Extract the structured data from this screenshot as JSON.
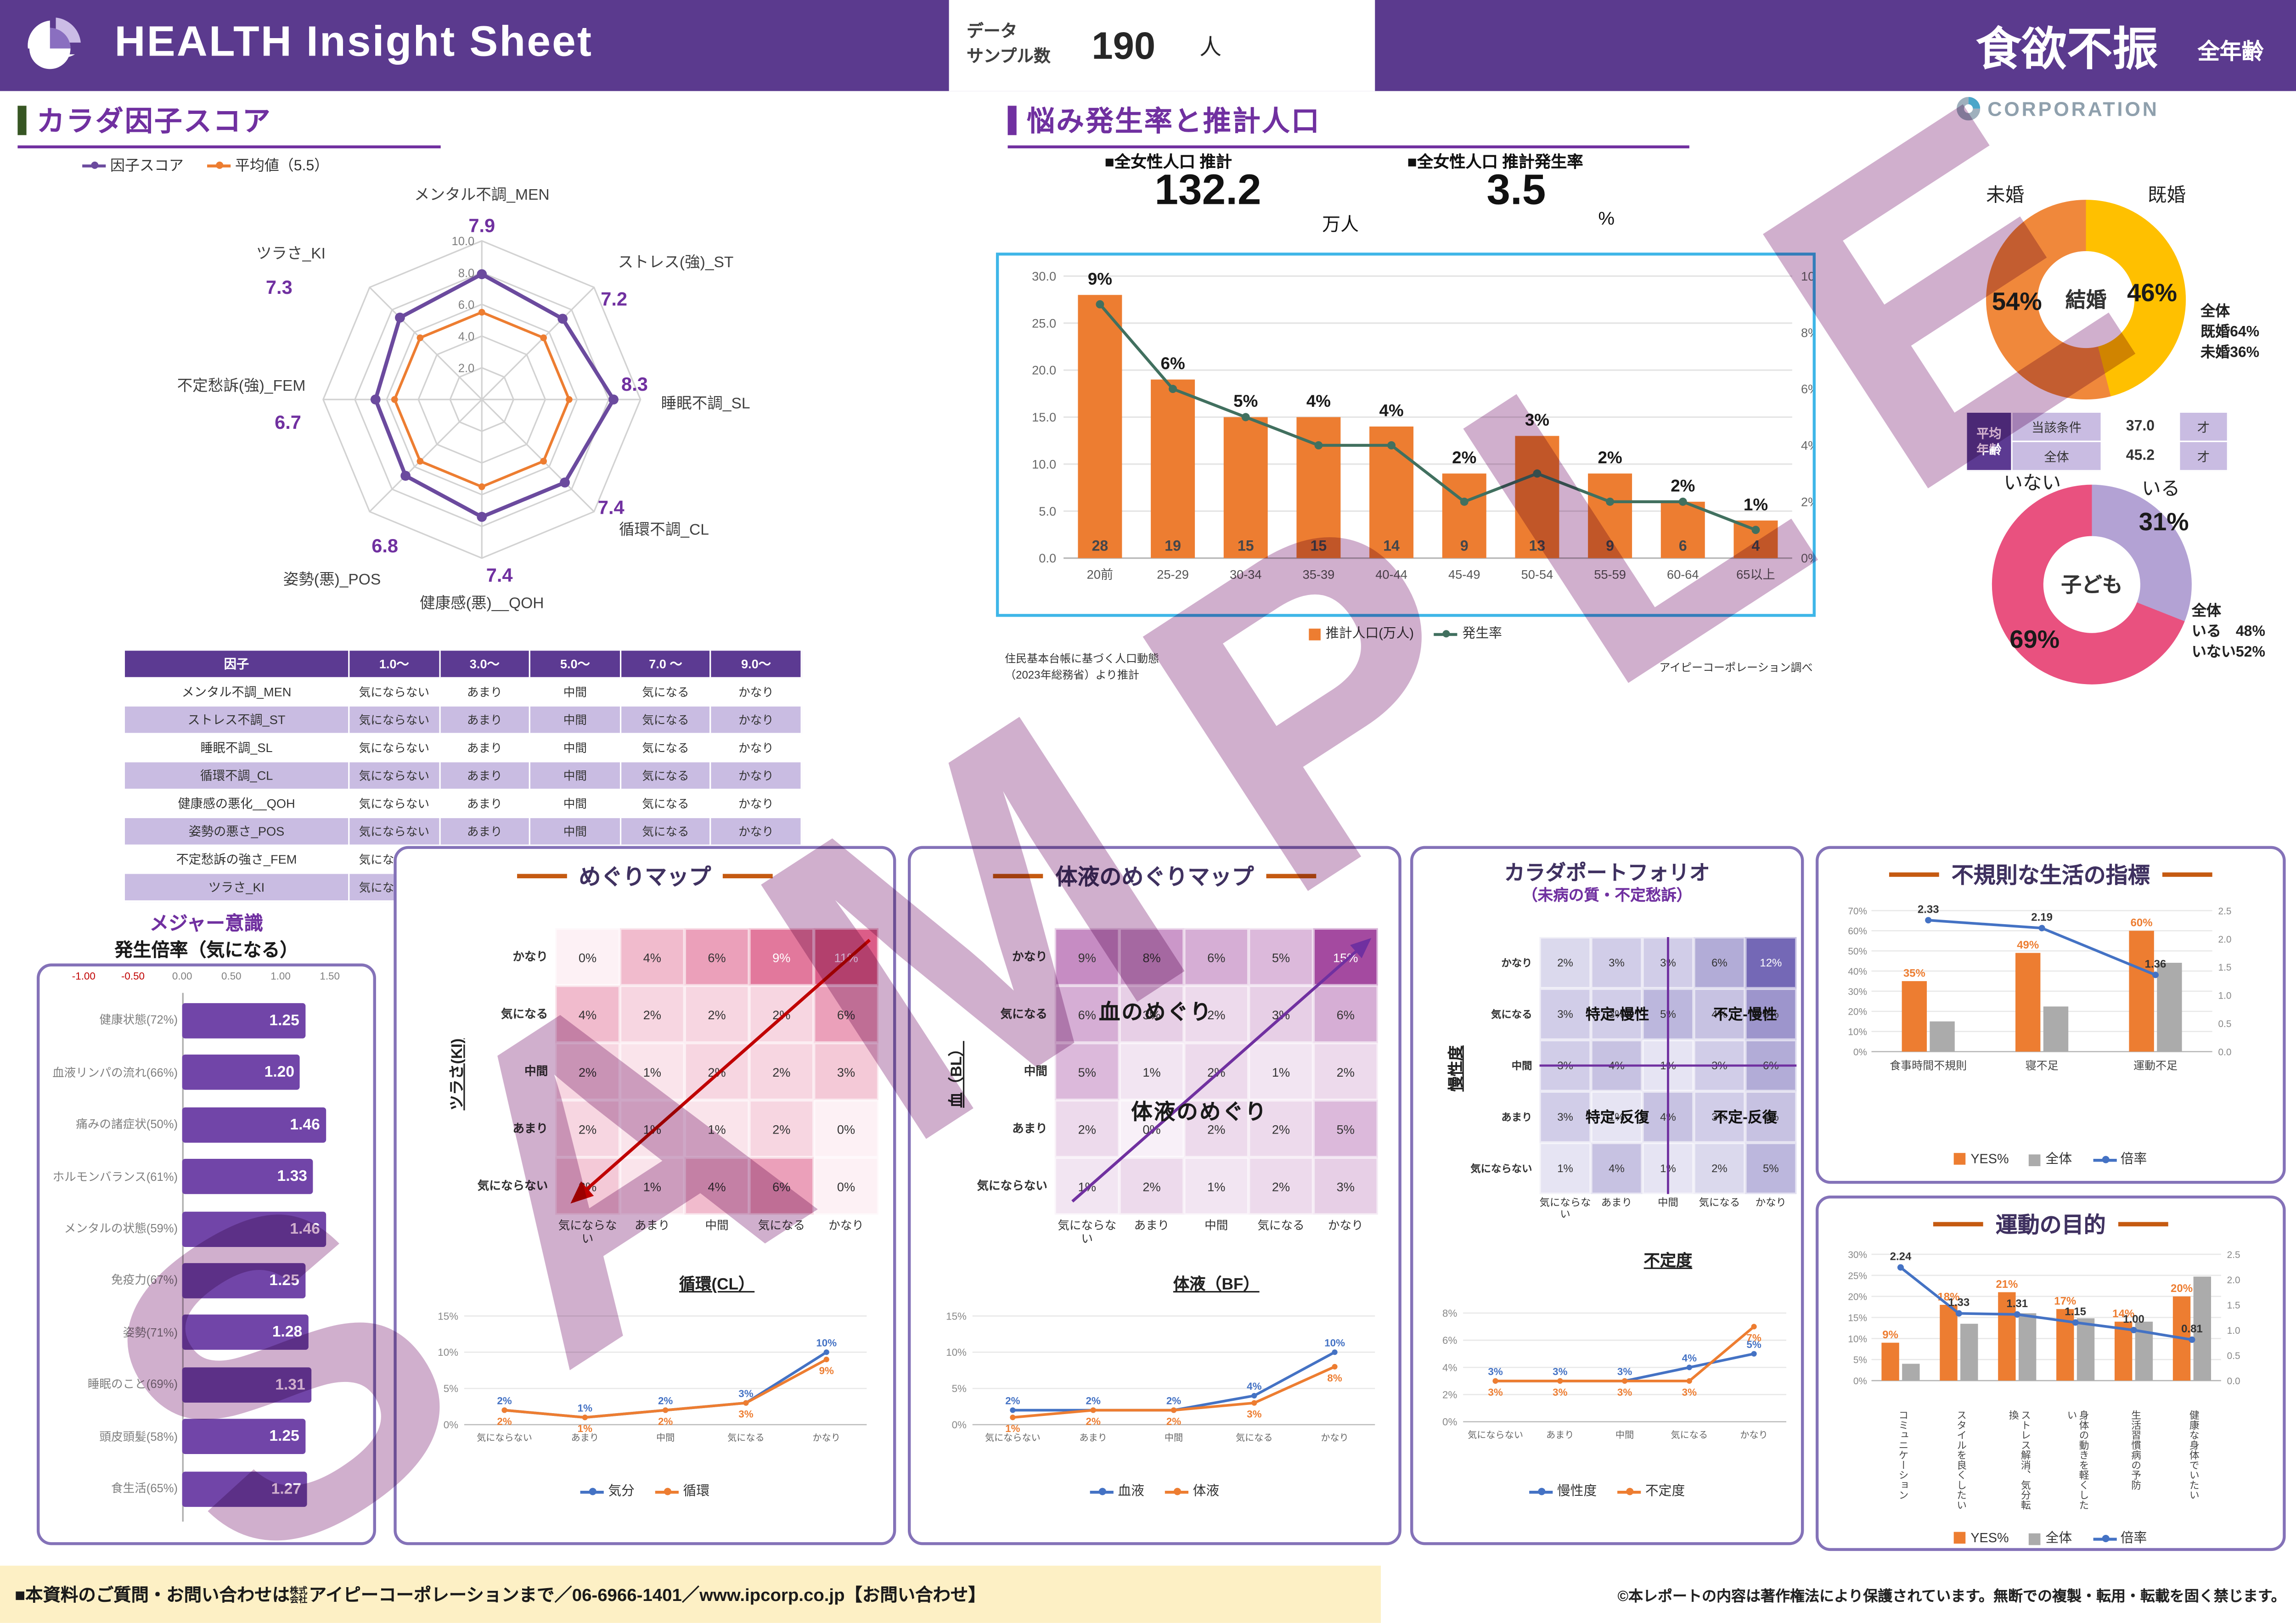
{
  "header": {
    "title": "HEALTH Insight Sheet",
    "sample_label_1": "データ",
    "sample_label_2": "サンプル数",
    "sample_value": "190",
    "sample_unit": "人",
    "topic": "食欲不振",
    "scope": "全年齢"
  },
  "logo": {
    "text": "CORPORATION"
  },
  "factor": {
    "section_title": "カラダ因子スコア",
    "legend_score": "因子スコア",
    "legend_avg": "平均値（5.5）",
    "ring_labels": [
      "2.0",
      "4.0",
      "6.0",
      "8.0",
      "10.0"
    ],
    "avg": 5.5,
    "axes": [
      {
        "name": "メンタル不調_MEN",
        "value": 7.9
      },
      {
        "name": "ストレス(強)_ST",
        "value": 7.2
      },
      {
        "name": "睡眠不調_SL",
        "value": 8.3
      },
      {
        "name": "循環不調_CL",
        "value": 7.4
      },
      {
        "name": "健康感(悪)__QOH",
        "value": 7.4
      },
      {
        "name": "姿勢(悪)_POS",
        "value": 6.8
      },
      {
        "name": "不定愁訴(強)_FEM",
        "value": 6.7
      },
      {
        "name": "ツラさ_KI",
        "value": 7.3
      }
    ],
    "table": {
      "headers": [
        "因子",
        "1.0〜",
        "3.0〜",
        "5.0〜",
        "7.0 〜",
        "9.0〜"
      ],
      "scale_labels": [
        "気にならない",
        "あまり",
        "中間",
        "気になる",
        "かなり"
      ],
      "rows": [
        "メンタル不調_MEN",
        "ストレス不調_ST",
        "睡眠不調_SL",
        "循環不調_CL",
        "健康感の悪化__QOH",
        "姿勢の悪さ_POS",
        "不定愁訴の強さ_FEM",
        "ツラさ_KI"
      ]
    }
  },
  "population": {
    "section_title": "悩み発生率と推計人口",
    "stat1_label": "■全女性人口 推計",
    "stat1_value": "132.2",
    "stat1_unit": "万人",
    "stat2_label": "■全女性人口 推計発生率",
    "stat2_value": "3.5",
    "stat2_unit": "%",
    "chart_data": {
      "type": "bar+line",
      "categories": [
        "20前",
        "25-29",
        "30-34",
        "35-39",
        "40-44",
        "45-49",
        "50-54",
        "55-59",
        "60-64",
        "65以上"
      ],
      "series": [
        {
          "name": "推計人口(万人)",
          "type": "bar",
          "values": [
            28,
            19,
            15,
            15,
            14,
            9,
            13,
            9,
            6,
            4
          ]
        },
        {
          "name": "発生率",
          "type": "line",
          "values": [
            9,
            6,
            5,
            4,
            4,
            2,
            3,
            2,
            2,
            1
          ]
        }
      ],
      "left_axis": {
        "max": 30,
        "ticks": [
          "0.0",
          "5.0",
          "10.0",
          "15.0",
          "20.0",
          "25.0",
          "30.0"
        ]
      },
      "right_axis": {
        "max": 10,
        "ticks": [
          "0%",
          "2%",
          "4%",
          "6%",
          "8%",
          "10%"
        ]
      }
    },
    "source_left_1": "住民基本台帳に基づく人口動態",
    "source_left_2": "（2023年総務省）より推計",
    "source_right": "アイピーコーポレーション調べ"
  },
  "marriage": {
    "center": "結婚",
    "chart_data": {
      "type": "pie",
      "segments": [
        {
          "label": "既婚",
          "value": 46,
          "color": "#FFC000"
        },
        {
          "label": "未婚",
          "value": 54,
          "color": "#F0883B"
        }
      ]
    },
    "label_left": "未婚",
    "pct_left": "54%",
    "label_right": "既婚",
    "pct_right": "46%",
    "note_1": "全体",
    "note_2": "既婚64%",
    "note_3": "未婚36%"
  },
  "age_table": {
    "header_1": "平均",
    "header_2": "年齢",
    "rows": [
      {
        "label": "当該条件",
        "value": "37.0",
        "unit": "才"
      },
      {
        "label": "全体",
        "value": "45.2",
        "unit": "才"
      }
    ]
  },
  "children": {
    "center": "子ども",
    "chart_data": {
      "type": "pie",
      "segments": [
        {
          "label": "いる",
          "value": 31,
          "color": "#B3A2D4"
        },
        {
          "label": "いない",
          "value": 69,
          "color": "#E9517F"
        }
      ]
    },
    "label_left": "いない",
    "pct_left": "69%",
    "label_right": "いる",
    "pct_right": "31%",
    "note_1": "全体",
    "note_2": "いる　48%",
    "note_3": "いない52%"
  },
  "measure": {
    "title_1": "メジャー意識",
    "title_2": "発生倍率（気になる）",
    "axis_ticks": [
      "-1.00",
      "-0.50",
      "0.00",
      "0.50",
      "1.00",
      "1.50"
    ],
    "chart_data": {
      "type": "bar",
      "xlim": [
        -1.0,
        1.5
      ],
      "items": [
        {
          "label": "健康状態(72%)",
          "value": 1.25
        },
        {
          "label": "血液リンパの流れ(66%)",
          "value": 1.2
        },
        {
          "label": "痛みの諸症状(50%)",
          "value": 1.46
        },
        {
          "label": "ホルモンバランス(61%)",
          "value": 1.33
        },
        {
          "label": "メンタルの状態(59%)",
          "value": 1.46
        },
        {
          "label": "免疫力(67%)",
          "value": 1.25
        },
        {
          "label": "姿勢(71%)",
          "value": 1.28
        },
        {
          "label": "睡眠のこと(69%)",
          "value": 1.31
        },
        {
          "label": "頭皮頭髪(58%)",
          "value": 1.25
        },
        {
          "label": "食生活(65%)",
          "value": 1.27
        }
      ]
    }
  },
  "meguri": {
    "title": "めぐりマップ",
    "y_axis": "ツラさ(KI)",
    "x_axis": "循環(CL）",
    "chart_data": {
      "type": "heatmap",
      "row_labels": [
        "かなり",
        "気になる",
        "中間",
        "あまり",
        "気にならない"
      ],
      "col_labels": [
        "気にならない",
        "あまり",
        "中間",
        "気になる",
        "かなり"
      ],
      "values": [
        [
          0,
          4,
          6,
          9,
          11
        ],
        [
          4,
          2,
          2,
          2,
          6
        ],
        [
          2,
          1,
          2,
          2,
          3
        ],
        [
          2,
          1,
          1,
          2,
          0
        ],
        [
          3,
          1,
          4,
          6,
          0
        ]
      ]
    },
    "line_chart": {
      "type": "line",
      "x": [
        "気にならない",
        "あまり",
        "中間",
        "気になる",
        "かなり"
      ],
      "ticks": [
        "0%",
        "5%",
        "10%",
        "15%"
      ],
      "max": 15,
      "series": [
        {
          "name": "気分",
          "color": "#4472C4",
          "values": [
            2,
            1,
            2,
            3,
            10
          ]
        },
        {
          "name": "循環",
          "color": "#ED7D31",
          "values": [
            2,
            1,
            2,
            3,
            9
          ]
        }
      ]
    }
  },
  "taieki": {
    "title": "体液のめぐりマップ",
    "y_axis": "血（BL）",
    "x_axis": "体液（BF）",
    "overlay_1": "血のめぐり",
    "overlay_2": "体液のめぐり",
    "chart_data": {
      "type": "heatmap",
      "row_labels": [
        "かなり",
        "気になる",
        "中間",
        "あまり",
        "気にならない"
      ],
      "col_labels": [
        "気にならない",
        "あまり",
        "中間",
        "気になる",
        "かなり"
      ],
      "values": [
        [
          9,
          8,
          6,
          5,
          15
        ],
        [
          6,
          3,
          2,
          3,
          6
        ],
        [
          5,
          1,
          2,
          1,
          2
        ],
        [
          2,
          0,
          2,
          2,
          5
        ],
        [
          1,
          2,
          1,
          2,
          3
        ]
      ]
    },
    "line_chart": {
      "type": "line",
      "x": [
        "気にならない",
        "あまり",
        "中間",
        "気になる",
        "かなり"
      ],
      "ticks": [
        "0%",
        "5%",
        "10%",
        "15%"
      ],
      "max": 15,
      "series": [
        {
          "name": "血液",
          "color": "#4472C4",
          "values": [
            2,
            2,
            2,
            4,
            10
          ]
        },
        {
          "name": "体液",
          "color": "#ED7D31",
          "values": [
            1,
            2,
            2,
            3,
            8
          ]
        }
      ]
    }
  },
  "portfolio": {
    "title": "カラダポートフォリオ",
    "subtitle": "（未病の質・不定愁訴）",
    "y_axis": "慢性度",
    "x_axis": "不定度",
    "quadrants": [
      "特定-慢性",
      "不定-慢性",
      "特定-反復",
      "不定-反復"
    ],
    "chart_data": {
      "type": "heatmap",
      "row_labels": [
        "かなり",
        "気になる",
        "中間",
        "あまり",
        "気にならない"
      ],
      "col_labels": [
        "気にならない",
        "あまり",
        "中間",
        "気になる",
        "かなり"
      ],
      "values": [
        [
          2,
          3,
          3,
          6,
          12
        ],
        [
          3,
          3,
          5,
          4,
          8
        ],
        [
          3,
          4,
          1,
          3,
          6
        ],
        [
          3,
          1,
          4,
          3,
          4
        ],
        [
          1,
          4,
          1,
          2,
          5
        ]
      ]
    },
    "line_chart": {
      "type": "line",
      "x": [
        "気にならない",
        "あまり",
        "中間",
        "気になる",
        "かなり"
      ],
      "ticks": [
        "0%",
        "2%",
        "4%",
        "6%",
        "8%"
      ],
      "max": 8,
      "series": [
        {
          "name": "慢性度",
          "color": "#4472C4",
          "values": [
            3,
            3,
            3,
            4,
            5
          ]
        },
        {
          "name": "不定度",
          "color": "#ED7D31",
          "values": [
            3,
            3,
            3,
            3,
            7
          ]
        }
      ]
    }
  },
  "irregular": {
    "title": "不規則な生活の指標",
    "legend": [
      "YES%",
      "全体",
      "倍率"
    ],
    "chart_data": {
      "type": "combo",
      "categories": [
        "食事時間不規則",
        "寝不足",
        "運動不足"
      ],
      "yes_pct": [
        35,
        49,
        60
      ],
      "all_pct": [
        15,
        22.4,
        44.1
      ],
      "ratio": [
        2.33,
        2.19,
        1.36
      ],
      "left_max": 70,
      "left_ticks": [
        "0%",
        "10%",
        "20%",
        "30%",
        "40%",
        "50%",
        "60%",
        "70%"
      ],
      "right_max": 2.5,
      "right_ticks": [
        "0.0",
        "0.5",
        "1.0",
        "1.5",
        "2.0",
        "2.5"
      ]
    }
  },
  "exercise": {
    "title": "運動の目的",
    "legend": [
      "YES%",
      "全体",
      "倍率"
    ],
    "chart_data": {
      "type": "combo",
      "categories": [
        "コミュニケーション",
        "スタイルを良くしたい",
        "ストレス解消、気分転換",
        "身体の動きを軽くしたい",
        "生活習慣病の予防",
        "健康な身体でいたい"
      ],
      "yes_pct": [
        9,
        18,
        21,
        17,
        14,
        20
      ],
      "all_pct": [
        4,
        13.5,
        16,
        14.8,
        14,
        24.7
      ],
      "ratio": [
        2.24,
        1.33,
        1.31,
        1.15,
        1.0,
        0.81
      ],
      "left_max": 30,
      "left_ticks": [
        "0%",
        "5%",
        "10%",
        "15%",
        "20%",
        "25%",
        "30%"
      ],
      "right_max": 2.5,
      "right_ticks": [
        "0.0",
        "0.5",
        "1.0",
        "1.5",
        "2.0",
        "2.5"
      ]
    }
  },
  "footer": {
    "left_prefix": "■本資料のご質問・お問い合わせは",
    "left_small": "株式会社",
    "left_main": "アイピーコーポレーションまで／06-6966-1401／www.ipcorp.co.jp【お問い合わせ】",
    "right": "©本レポートの内容は著作権法により保護されています。無断での複製・転用・転載を固く禁じます。"
  },
  "watermark": "SAMPLE"
}
